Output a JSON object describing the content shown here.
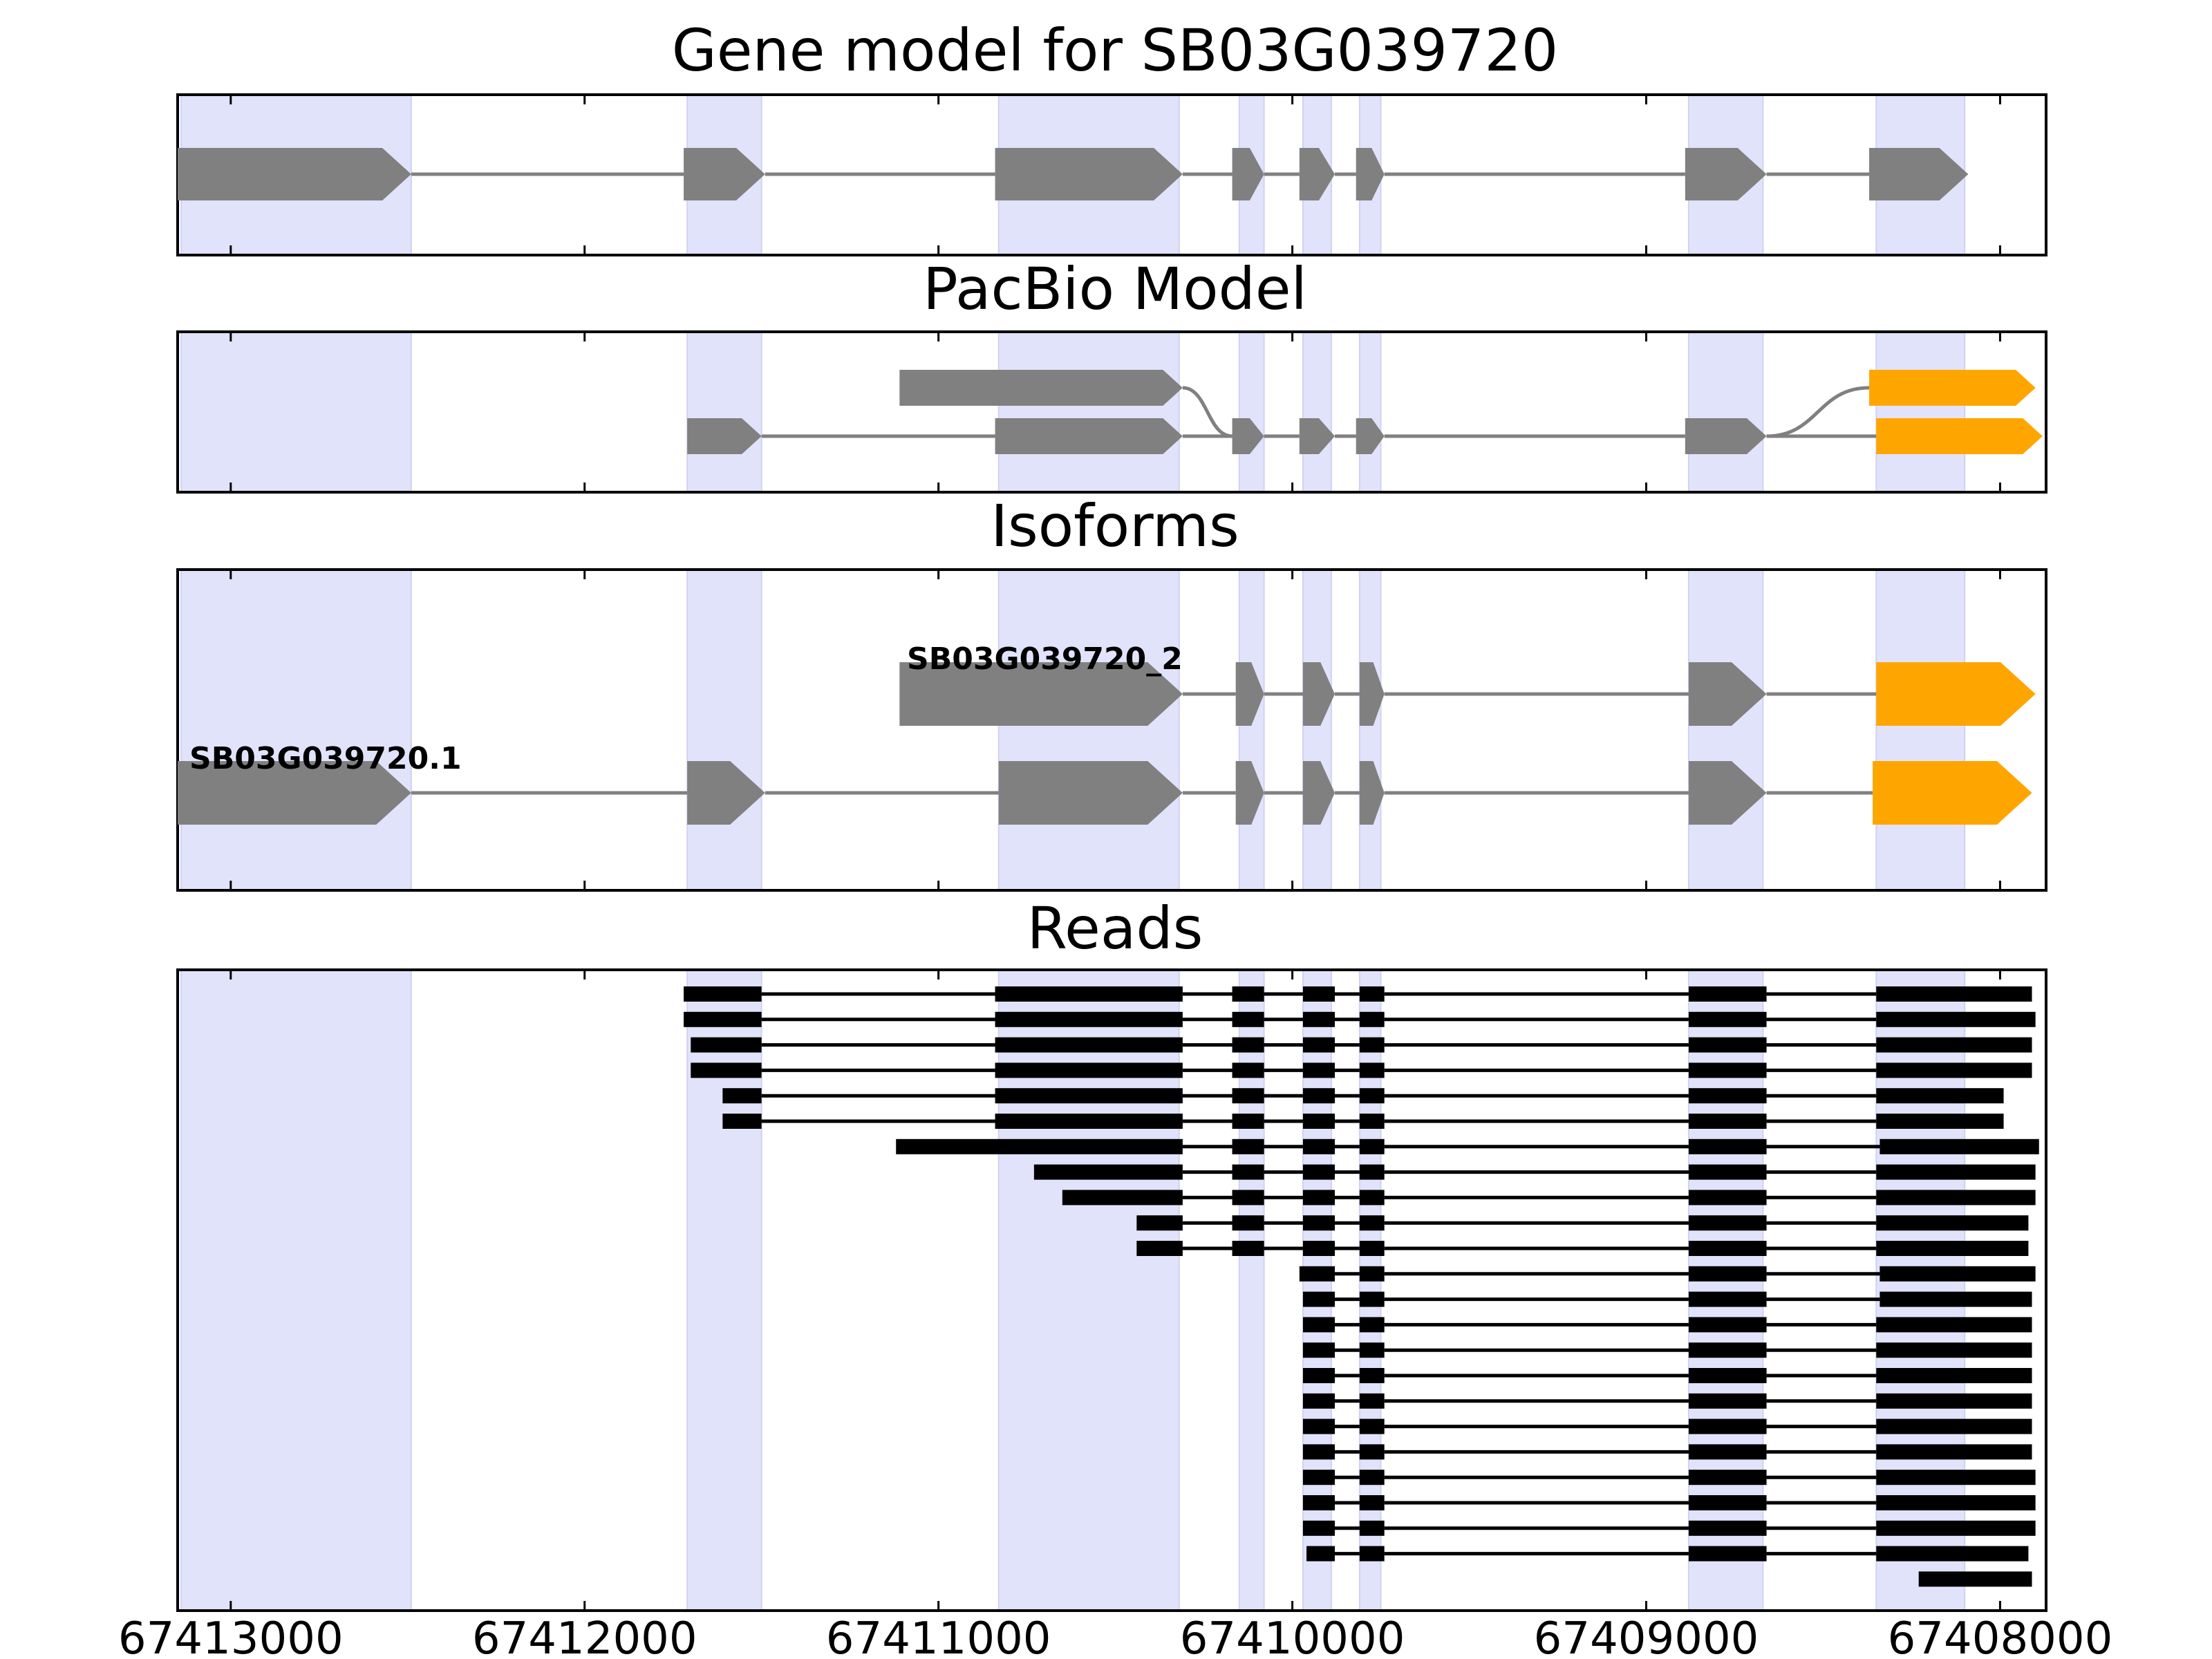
{
  "chart_data": {
    "type": "gene-track",
    "xaxis": {
      "reversed": true,
      "range": [
        67413150,
        67407870
      ],
      "ticks": [
        "67413000",
        "67412000",
        "67411000",
        "67410000",
        "67409000",
        "67408000"
      ],
      "tick_values": [
        67413000,
        67412000,
        67411000,
        67410000,
        67409000,
        67408000
      ]
    },
    "exon_highlights": [
      [
        67413140,
        67412490
      ],
      [
        67411710,
        67411500
      ],
      [
        67410830,
        67410320
      ],
      [
        67410150,
        67410080
      ],
      [
        67409970,
        67409890
      ],
      [
        67409810,
        67409750
      ],
      [
        67408880,
        67408670
      ],
      [
        67408350,
        67408100
      ]
    ],
    "panels": {
      "gene_model": {
        "title": "Gene model for SB03G039720",
        "exons": [
          [
            67413150,
            67412490
          ],
          [
            67411720,
            67411490
          ],
          [
            67410840,
            67410310
          ],
          [
            67410170,
            67410080
          ],
          [
            67409980,
            67409880
          ],
          [
            67409820,
            67409740
          ],
          [
            67408890,
            67408660
          ],
          [
            67408370,
            67408090
          ]
        ],
        "color": "#808080"
      },
      "pacbio_model": {
        "title": "PacBio Model",
        "rows": [
          {
            "exons": [
              [
                67411110,
                67410310
              ],
              [
                67408370,
                67407900
              ]
            ],
            "colors": [
              "#808080",
              "#ffa500"
            ],
            "crossings": [
              [
                67410310,
                67410170
              ],
              [
                67408660,
                67408370
              ]
            ]
          },
          {
            "exons": [
              [
                67411710,
                67411500
              ],
              [
                67410840,
                67410310
              ],
              [
                67410170,
                67410080
              ],
              [
                67409980,
                67409880
              ],
              [
                67409820,
                67409740
              ],
              [
                67408890,
                67408660
              ],
              [
                67408350,
                67407880
              ]
            ],
            "colors": [
              "#808080",
              "#808080",
              "#808080",
              "#808080",
              "#808080",
              "#808080",
              "#ffa500"
            ]
          }
        ]
      },
      "isoforms": {
        "title": "Isoforms",
        "rows": [
          {
            "name": "SB03G039720_2",
            "exons": [
              [
                67411110,
                67410310
              ],
              [
                67410160,
                67410080
              ],
              [
                67409970,
                67409880
              ],
              [
                67409810,
                67409740
              ],
              [
                67408880,
                67408660
              ],
              [
                67408350,
                67407900
              ]
            ],
            "colors": [
              "#808080",
              "#808080",
              "#808080",
              "#808080",
              "#808080",
              "#ffa500"
            ]
          },
          {
            "name": "SB03G039720.1",
            "exons": [
              [
                67413150,
                67412490
              ],
              [
                67411710,
                67411490
              ],
              [
                67410830,
                67410310
              ],
              [
                67410160,
                67410080
              ],
              [
                67409970,
                67409880
              ],
              [
                67409810,
                67409740
              ],
              [
                67408880,
                67408660
              ],
              [
                67408360,
                67407910
              ]
            ],
            "colors": [
              "#808080",
              "#808080",
              "#808080",
              "#808080",
              "#808080",
              "#808080",
              "#808080",
              "#ffa500"
            ]
          }
        ]
      },
      "reads": {
        "title": "Reads",
        "reads": [
          [
            [
              67411720,
              67411500
            ],
            [
              67410840,
              67410310
            ],
            [
              67410170,
              67410080
            ],
            [
              67409970,
              67409880
            ],
            [
              67409810,
              67409740
            ],
            [
              67408880,
              67408660
            ],
            [
              67408350,
              67407910
            ]
          ],
          [
            [
              67411720,
              67411500
            ],
            [
              67410840,
              67410310
            ],
            [
              67410170,
              67410080
            ],
            [
              67409970,
              67409880
            ],
            [
              67409810,
              67409740
            ],
            [
              67408880,
              67408660
            ],
            [
              67408350,
              67407900
            ]
          ],
          [
            [
              67411700,
              67411500
            ],
            [
              67410840,
              67410310
            ],
            [
              67410170,
              67410080
            ],
            [
              67409970,
              67409880
            ],
            [
              67409810,
              67409740
            ],
            [
              67408880,
              67408660
            ],
            [
              67408350,
              67407910
            ]
          ],
          [
            [
              67411700,
              67411500
            ],
            [
              67410840,
              67410310
            ],
            [
              67410170,
              67410080
            ],
            [
              67409970,
              67409880
            ],
            [
              67409810,
              67409740
            ],
            [
              67408880,
              67408660
            ],
            [
              67408350,
              67407910
            ]
          ],
          [
            [
              67411610,
              67411500
            ],
            [
              67410840,
              67410310
            ],
            [
              67410170,
              67410080
            ],
            [
              67409970,
              67409880
            ],
            [
              67409810,
              67409740
            ],
            [
              67408880,
              67408660
            ],
            [
              67408350,
              67407990
            ]
          ],
          [
            [
              67411610,
              67411500
            ],
            [
              67410840,
              67410310
            ],
            [
              67410170,
              67410080
            ],
            [
              67409970,
              67409880
            ],
            [
              67409810,
              67409740
            ],
            [
              67408880,
              67408660
            ],
            [
              67408350,
              67407990
            ]
          ],
          [
            [
              67411120,
              67410310
            ],
            [
              67410170,
              67410080
            ],
            [
              67409970,
              67409880
            ],
            [
              67409810,
              67409740
            ],
            [
              67408880,
              67408660
            ],
            [
              67408340,
              67407890
            ]
          ],
          [
            [
              67410730,
              67410310
            ],
            [
              67410170,
              67410080
            ],
            [
              67409970,
              67409880
            ],
            [
              67409810,
              67409740
            ],
            [
              67408880,
              67408660
            ],
            [
              67408350,
              67407900
            ]
          ],
          [
            [
              67410650,
              67410310
            ],
            [
              67410170,
              67410080
            ],
            [
              67409970,
              67409880
            ],
            [
              67409810,
              67409740
            ],
            [
              67408880,
              67408660
            ],
            [
              67408350,
              67407900
            ]
          ],
          [
            [
              67410440,
              67410310
            ],
            [
              67410170,
              67410080
            ],
            [
              67409970,
              67409880
            ],
            [
              67409810,
              67409740
            ],
            [
              67408880,
              67408660
            ],
            [
              67408350,
              67407920
            ]
          ],
          [
            [
              67410440,
              67410310
            ],
            [
              67410170,
              67410080
            ],
            [
              67409970,
              67409880
            ],
            [
              67409810,
              67409740
            ],
            [
              67408880,
              67408660
            ],
            [
              67408350,
              67407920
            ]
          ],
          [
            [
              67409980,
              67409880
            ],
            [
              67409810,
              67409740
            ],
            [
              67408880,
              67408660
            ],
            [
              67408340,
              67407900
            ]
          ],
          [
            [
              67409970,
              67409880
            ],
            [
              67409810,
              67409740
            ],
            [
              67408880,
              67408660
            ],
            [
              67408340,
              67407910
            ]
          ],
          [
            [
              67409970,
              67409880
            ],
            [
              67409810,
              67409740
            ],
            [
              67408880,
              67408660
            ],
            [
              67408350,
              67407910
            ]
          ],
          [
            [
              67409970,
              67409880
            ],
            [
              67409810,
              67409740
            ],
            [
              67408880,
              67408660
            ],
            [
              67408350,
              67407910
            ]
          ],
          [
            [
              67409970,
              67409880
            ],
            [
              67409810,
              67409740
            ],
            [
              67408880,
              67408660
            ],
            [
              67408350,
              67407910
            ]
          ],
          [
            [
              67409970,
              67409880
            ],
            [
              67409810,
              67409740
            ],
            [
              67408880,
              67408660
            ],
            [
              67408350,
              67407910
            ]
          ],
          [
            [
              67409970,
              67409880
            ],
            [
              67409810,
              67409740
            ],
            [
              67408880,
              67408660
            ],
            [
              67408350,
              67407910
            ]
          ],
          [
            [
              67409970,
              67409880
            ],
            [
              67409810,
              67409740
            ],
            [
              67408880,
              67408660
            ],
            [
              67408350,
              67407910
            ]
          ],
          [
            [
              67409970,
              67409880
            ],
            [
              67409810,
              67409740
            ],
            [
              67408880,
              67408660
            ],
            [
              67408350,
              67407900
            ]
          ],
          [
            [
              67409970,
              67409880
            ],
            [
              67409810,
              67409740
            ],
            [
              67408880,
              67408660
            ],
            [
              67408350,
              67407900
            ]
          ],
          [
            [
              67409970,
              67409880
            ],
            [
              67409810,
              67409740
            ],
            [
              67408880,
              67408660
            ],
            [
              67408350,
              67407900
            ]
          ],
          [
            [
              67409960,
              67409880
            ],
            [
              67409810,
              67409740
            ],
            [
              67408880,
              67408660
            ],
            [
              67408350,
              67407920
            ]
          ],
          [
            [
              67408230,
              67407910
            ]
          ]
        ]
      }
    }
  }
}
